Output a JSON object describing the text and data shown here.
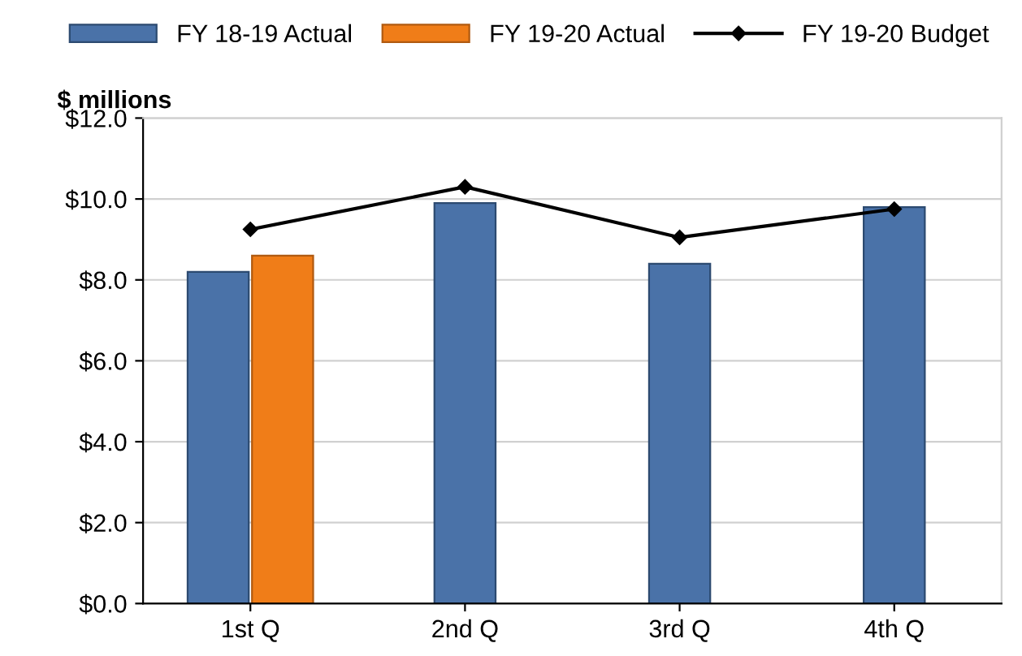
{
  "chart_data": {
    "type": "bar",
    "ylabel": "$ millions",
    "categories": [
      "1st Q",
      "2nd Q",
      "3rd Q",
      "4th Q"
    ],
    "series": [
      {
        "name": "FY 18-19 Actual",
        "color": "#4a72a8",
        "values": [
          8.2,
          9.9,
          8.4,
          9.8
        ]
      },
      {
        "name": "FY 19-20 Actual",
        "color": "#f07d18",
        "values": [
          8.6,
          null,
          null,
          null
        ]
      },
      {
        "name": "FY 19-20 Budget",
        "type": "line",
        "color": "#000000",
        "marker": "diamond",
        "values": [
          9.25,
          10.3,
          9.05,
          9.75
        ]
      }
    ],
    "ylim": [
      0,
      12
    ],
    "yticks": [
      {
        "value": 0,
        "label": "$0.0"
      },
      {
        "value": 2,
        "label": "$2.0"
      },
      {
        "value": 4,
        "label": "$4.0"
      },
      {
        "value": 6,
        "label": "$6.0"
      },
      {
        "value": 8,
        "label": "$8.0"
      },
      {
        "value": 10,
        "label": "$10.0"
      },
      {
        "value": 12,
        "label": "$12.0"
      }
    ],
    "grid": "y",
    "legend": "top"
  }
}
